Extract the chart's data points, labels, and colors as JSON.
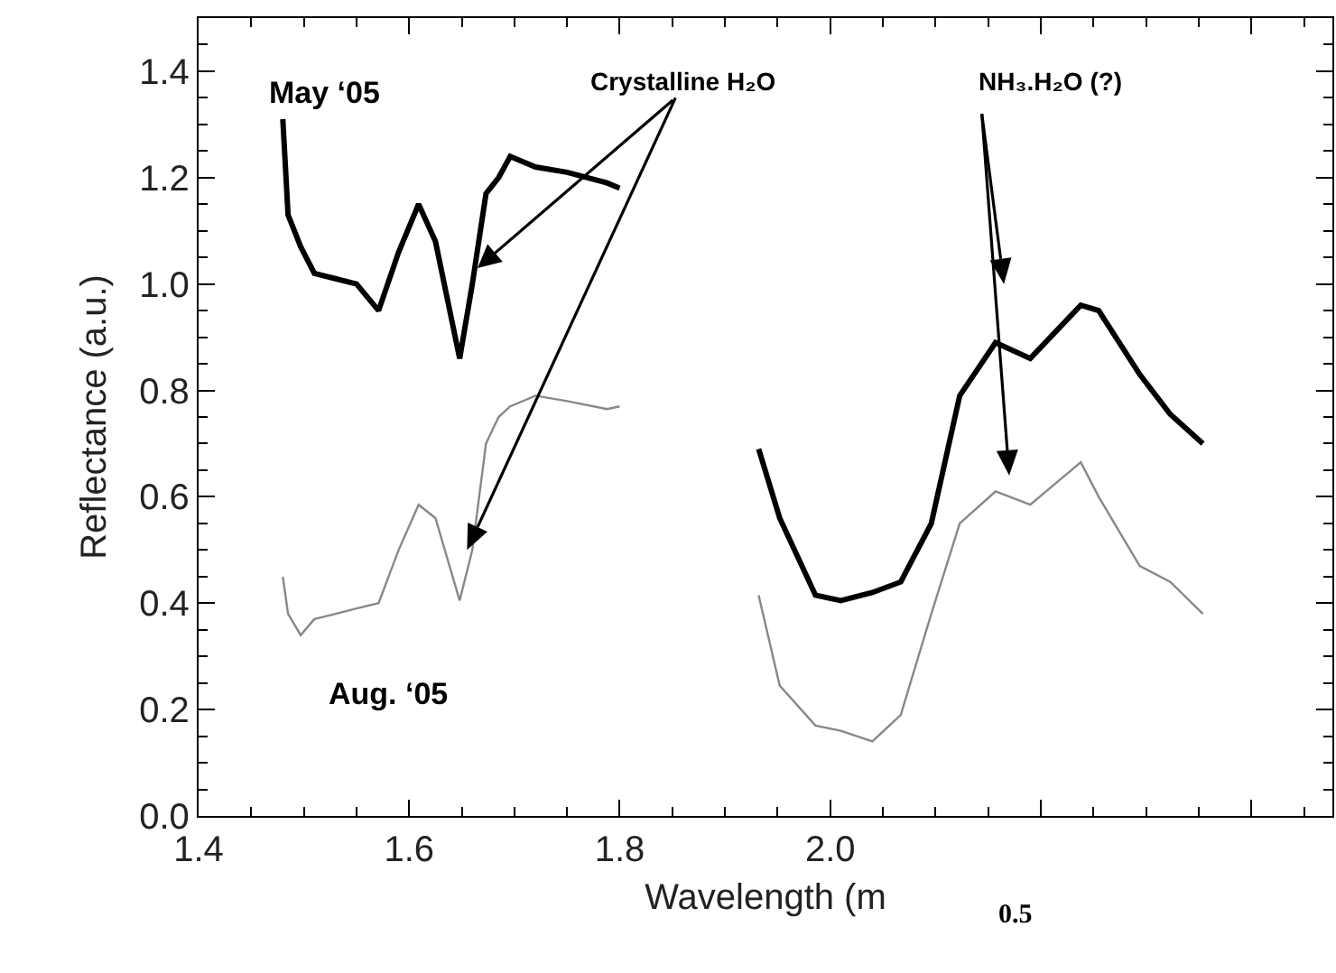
{
  "chart_data": {
    "type": "line",
    "xlabel": "Wavelength (m",
    "ylabel": "Reflectance (a.u.)",
    "xlim": [
      1.4,
      2.477
    ],
    "xticks": [
      1.4,
      1.6,
      1.8,
      {
        "value": 2,
        "label": "2.0"
      },
      {
        "value": 2.2,
        "label": null
      },
      {
        "value": 2.4,
        "label": null
      }
    ],
    "ylim": [
      0,
      1.5
    ],
    "yticks": [
      {
        "value": 0,
        "label": "0.0"
      },
      0.2,
      0.4,
      0.6,
      0.8,
      {
        "value": 1,
        "label": "1.0"
      },
      1.2,
      1.4
    ],
    "marker": "none",
    "line_style": "solid",
    "x": [
      1.48,
      1.485,
      1.497,
      1.51,
      1.53,
      1.55,
      1.571,
      1.59,
      1.609,
      1.625,
      1.648,
      1.66,
      1.673,
      1.685,
      1.696,
      1.72,
      1.75,
      1.788,
      1.8,
      1.87,
      1.932,
      1.952,
      1.986,
      2.01,
      2.04,
      2.067,
      2.096,
      2.123,
      2.157,
      2.19,
      2.238,
      2.255,
      2.294,
      2.323,
      2.354
    ],
    "series": [
      {
        "name": null,
        "color": "#000000",
        "values": [
          1.31,
          1.13,
          1.07,
          1.02,
          1.01,
          1.0,
          0.95,
          1.06,
          1.15,
          1.08,
          0.86,
          1.0,
          1.17,
          1.2,
          1.24,
          1.22,
          1.21,
          1.19,
          1.18,
          null,
          0.69,
          0.56,
          0.415,
          0.405,
          0.42,
          0.44,
          0.55,
          0.79,
          0.89,
          0.86,
          0.96,
          0.95,
          0.83,
          0.755,
          0.7
        ]
      },
      {
        "name": null,
        "color": "#888888",
        "values": [
          0.45,
          0.38,
          0.34,
          0.37,
          0.38,
          0.39,
          0.4,
          0.5,
          0.585,
          0.56,
          0.405,
          0.5,
          0.7,
          0.75,
          0.77,
          0.79,
          0.78,
          0.765,
          0.77,
          null,
          0.415,
          0.245,
          0.17,
          0.16,
          0.14,
          0.19,
          0.38,
          0.55,
          0.61,
          0.585,
          0.665,
          0.6,
          0.47,
          0.44,
          0.38
        ]
      }
    ],
    "annotations": [
      {
        "text": "May ‘05"
      },
      {
        "text": "Aug. ‘05"
      },
      {
        "text": "Crystalline H₂O",
        "x": 1.665,
        "y": 1.03
      },
      "NH₃.H₂O (?)",
      {
        "text": "0.5"
      }
    ]
  }
}
